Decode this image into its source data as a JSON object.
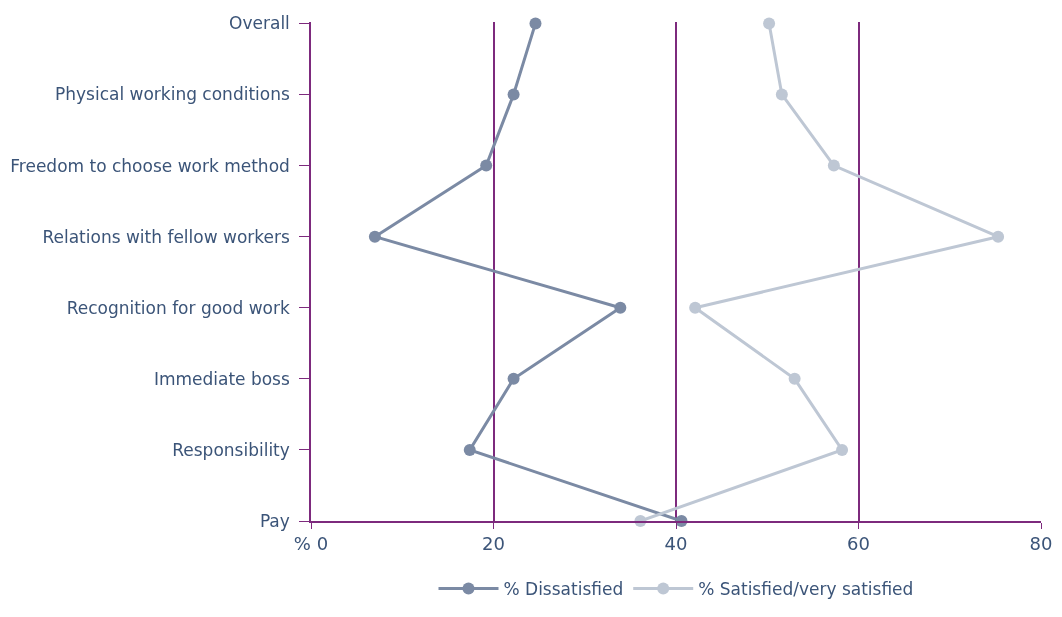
{
  "chart_data": {
    "type": "line",
    "orientation": "horizontal",
    "categories": [
      "Overall",
      "Physical working conditions",
      "Freedom to choose work method",
      "Relations with fellow workers",
      "Recognition for good work",
      "Immediate boss",
      "Responsibility",
      "Pay"
    ],
    "series": [
      {
        "name": "% Dissatisfied",
        "color": "#7b8aa4",
        "values": [
          24.6,
          22.2,
          19.2,
          7.0,
          33.9,
          22.2,
          17.4,
          40.6
        ]
      },
      {
        "name": "% Satisfied/very satisfied",
        "color": "#bec7d4",
        "values": [
          50.2,
          51.6,
          57.3,
          75.3,
          42.1,
          53.0,
          58.2,
          36.1
        ]
      }
    ],
    "xlim": [
      0,
      80
    ],
    "xticks": [
      {
        "value": 0,
        "label": "% 0"
      },
      20,
      40,
      60,
      80
    ],
    "grid": "x",
    "legend": "bottom",
    "marker": "circle",
    "line_style": "solid"
  }
}
